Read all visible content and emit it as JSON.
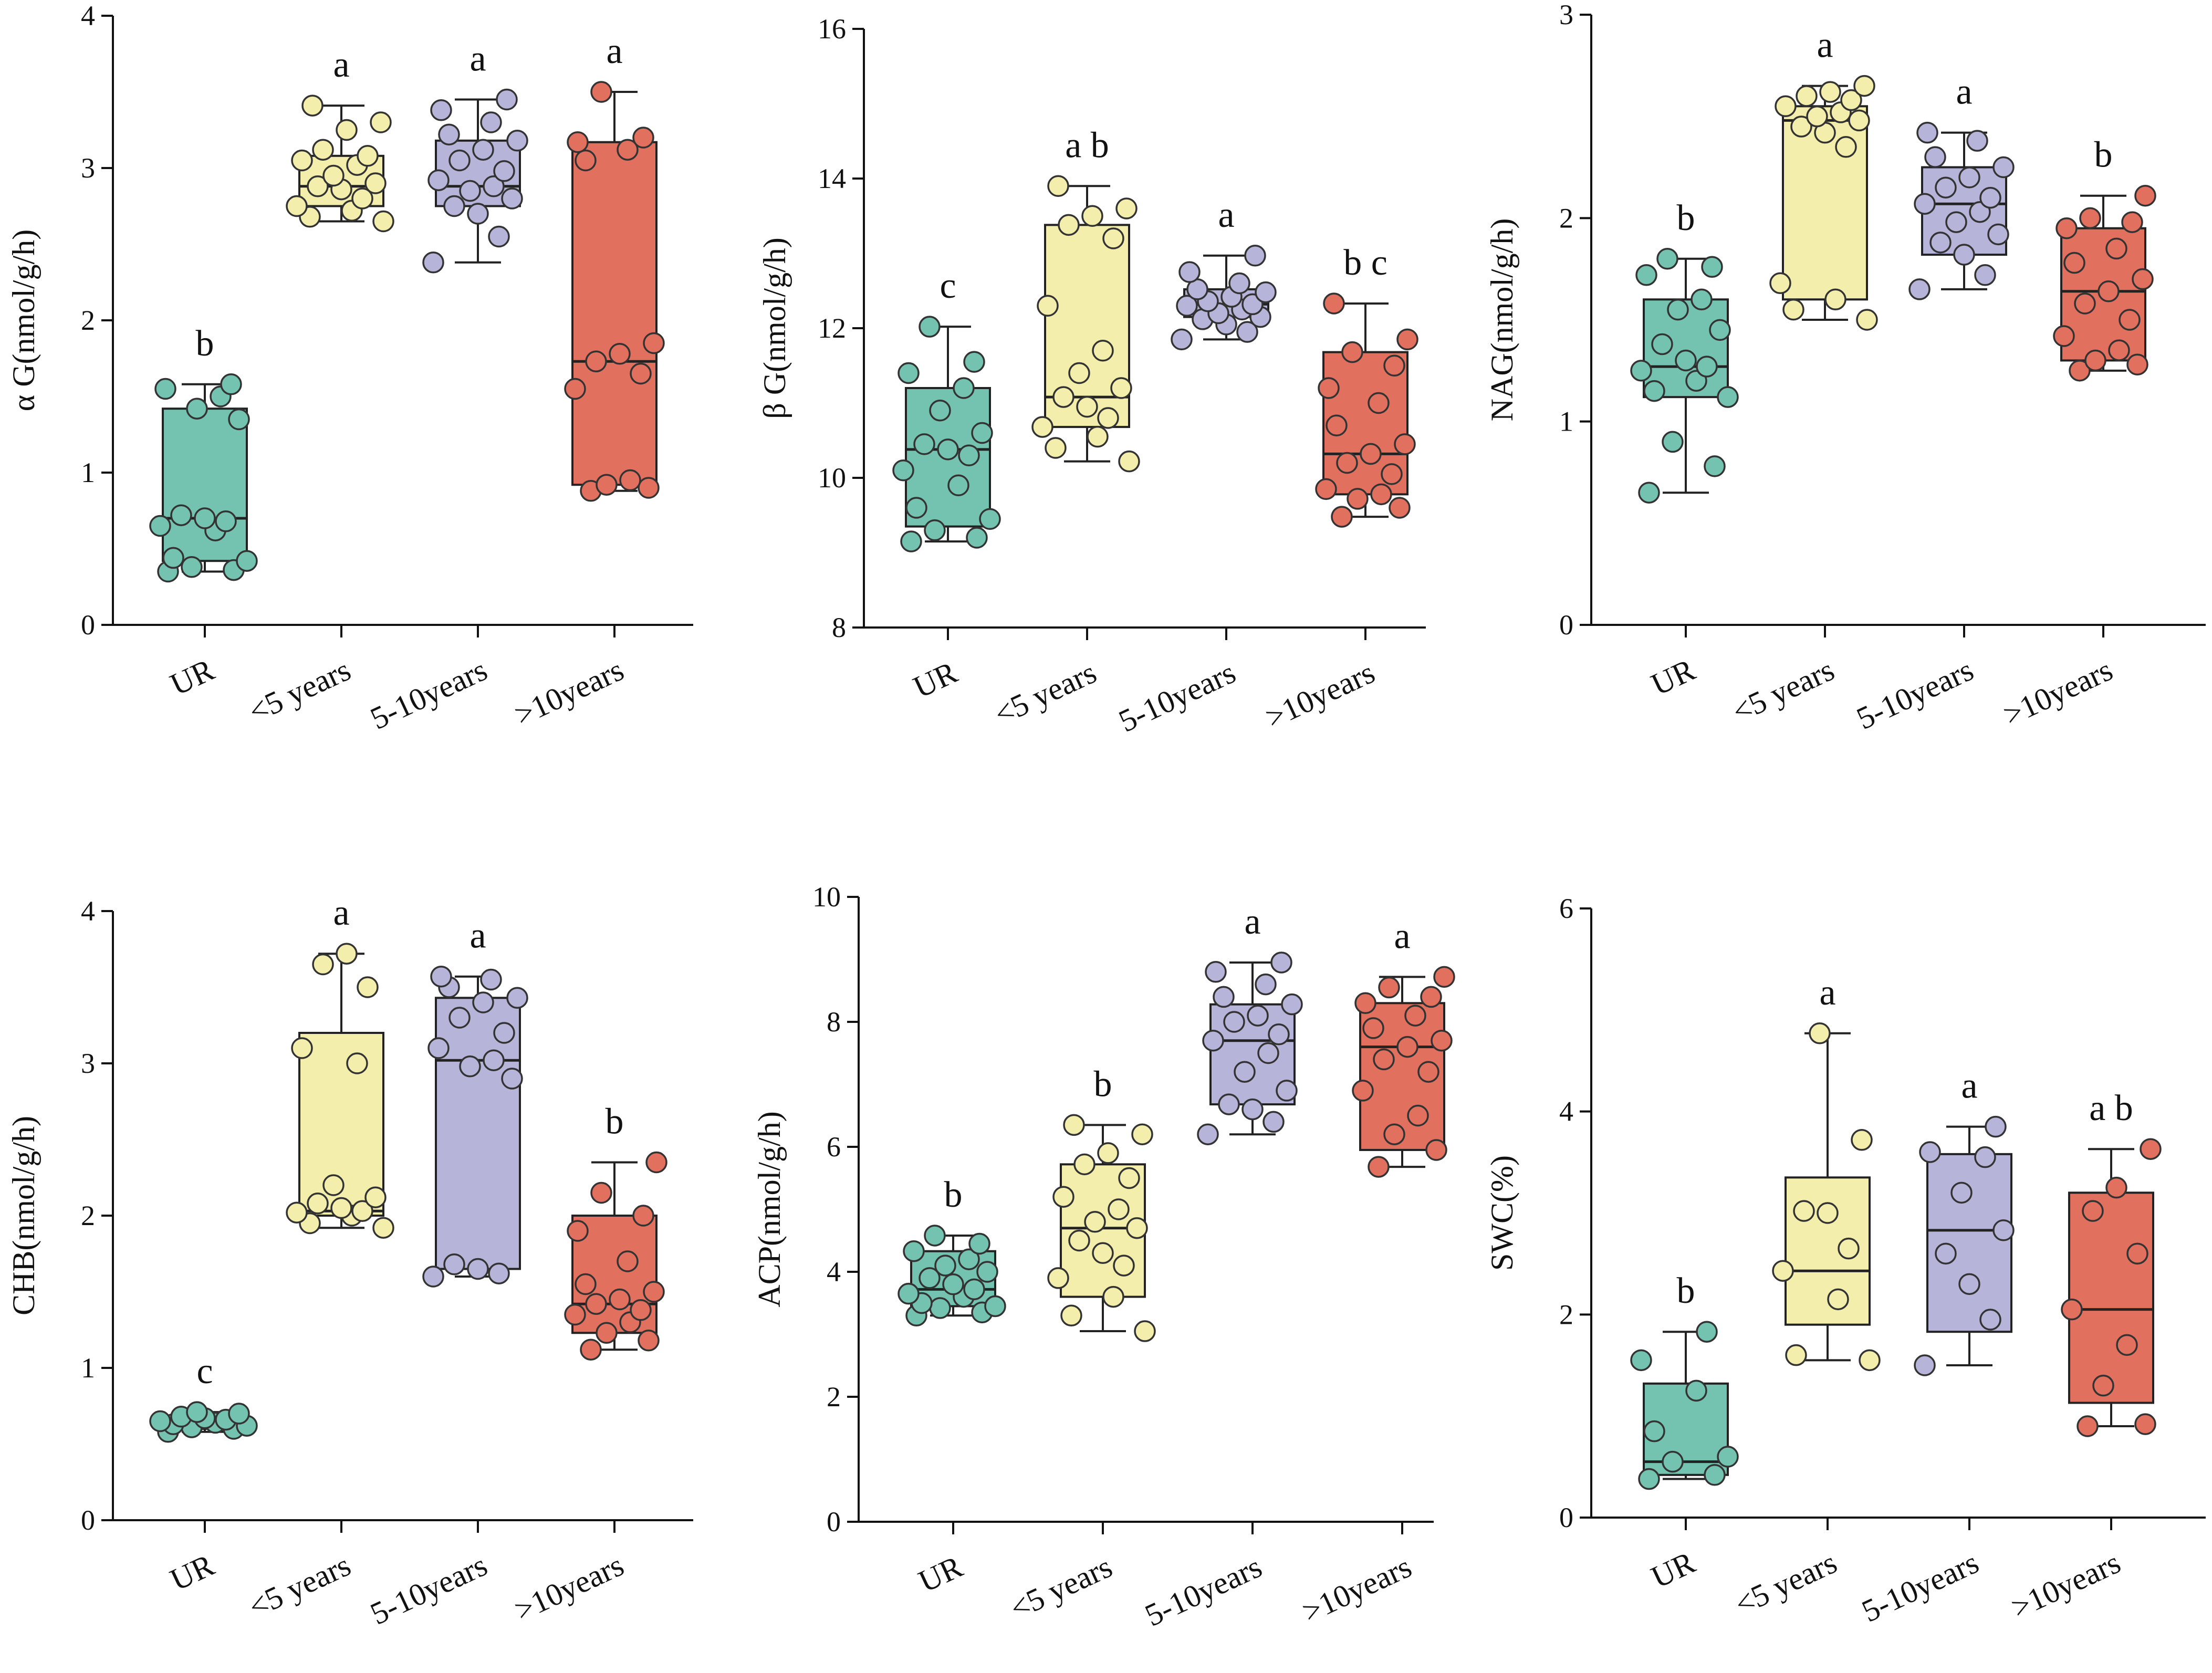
{
  "colors": {
    "UR": "#74c2b0",
    "<5 years": "#f3eeab",
    "5-10years": "#b7b4d9",
    ">10years": "#e2705f",
    "stroke": "#333333",
    "median": "#222222"
  },
  "chart_data": [
    {
      "type": "box",
      "panel": "a",
      "ylabel": "α G(nmol/g/h)",
      "ylim": [
        0,
        4
      ],
      "yticks": [
        0,
        1,
        2,
        3,
        4
      ],
      "categories": [
        "UR",
        "<5 years",
        "5-10years",
        ">10years"
      ],
      "series": [
        {
          "name": "UR",
          "min": 0.35,
          "q1": 0.42,
          "median": 0.7,
          "q3": 1.42,
          "max": 1.58,
          "letter": "b",
          "points": [
            0.35,
            0.36,
            0.38,
            0.42,
            0.44,
            0.62,
            0.65,
            0.68,
            0.7,
            0.72,
            1.35,
            1.42,
            1.5,
            1.55,
            1.58
          ]
        },
        {
          "name": "<5 years",
          "min": 2.65,
          "q1": 2.75,
          "median": 2.88,
          "q3": 3.08,
          "max": 3.41,
          "letter": "a",
          "points": [
            2.65,
            2.68,
            2.72,
            2.75,
            2.8,
            2.86,
            2.88,
            2.9,
            2.95,
            3.02,
            3.05,
            3.08,
            3.12,
            3.25,
            3.3,
            3.41
          ]
        },
        {
          "name": "5-10years",
          "min": 2.38,
          "q1": 2.75,
          "median": 2.88,
          "q3": 3.18,
          "max": 3.45,
          "letter": "a",
          "points": [
            2.38,
            2.55,
            2.7,
            2.75,
            2.8,
            2.85,
            2.88,
            2.92,
            2.98,
            3.05,
            3.12,
            3.18,
            3.22,
            3.3,
            3.38,
            3.45
          ]
        },
        {
          "name": ">10years",
          "min": 0.88,
          "q1": 0.92,
          "median": 1.73,
          "q3": 3.17,
          "max": 3.5,
          "letter": "a",
          "points": [
            0.88,
            0.9,
            0.92,
            0.95,
            1.55,
            1.65,
            1.73,
            1.78,
            1.85,
            3.05,
            3.12,
            3.17,
            3.2,
            3.5
          ]
        }
      ]
    },
    {
      "type": "box",
      "panel": "b",
      "ylabel": "β G(nmol/g/h)",
      "ylim": [
        8,
        16
      ],
      "yticks": [
        8,
        10,
        12,
        14,
        16
      ],
      "categories": [
        "UR",
        "<5 years",
        "5-10years",
        ">10years"
      ],
      "series": [
        {
          "name": "UR",
          "min": 9.15,
          "q1": 9.35,
          "median": 10.38,
          "q3": 11.2,
          "max": 12.02,
          "letter": "c",
          "points": [
            9.15,
            9.2,
            9.3,
            9.45,
            9.6,
            9.9,
            10.1,
            10.3,
            10.38,
            10.45,
            10.6,
            10.9,
            11.2,
            11.4,
            11.55,
            12.02
          ]
        },
        {
          "name": "<5 years",
          "min": 10.22,
          "q1": 10.68,
          "median": 11.08,
          "q3": 13.38,
          "max": 13.9,
          "letter": "a b",
          "points": [
            10.22,
            10.4,
            10.55,
            10.68,
            10.8,
            10.95,
            11.08,
            11.2,
            11.4,
            11.7,
            12.3,
            13.2,
            13.38,
            13.5,
            13.6,
            13.9
          ]
        },
        {
          "name": "5-10years",
          "min": 11.85,
          "q1": 12.15,
          "median": 12.32,
          "q3": 12.52,
          "max": 12.97,
          "letter": "a",
          "points": [
            11.85,
            11.95,
            12.05,
            12.12,
            12.15,
            12.2,
            12.25,
            12.3,
            12.32,
            12.36,
            12.42,
            12.48,
            12.52,
            12.6,
            12.75,
            12.97
          ]
        },
        {
          "name": ">10years",
          "min": 9.48,
          "q1": 9.78,
          "median": 10.32,
          "q3": 11.68,
          "max": 12.33,
          "letter": "b c",
          "points": [
            9.48,
            9.6,
            9.72,
            9.78,
            9.85,
            10.05,
            10.2,
            10.32,
            10.45,
            10.7,
            11.0,
            11.2,
            11.5,
            11.68,
            11.85,
            12.33
          ]
        }
      ]
    },
    {
      "type": "box",
      "panel": "c",
      "ylabel": "NAG(nmol/g/h)",
      "ylim": [
        0,
        3
      ],
      "yticks": [
        0,
        1,
        2,
        3
      ],
      "categories": [
        "UR",
        "<5 years",
        "5-10years",
        ">10years"
      ],
      "series": [
        {
          "name": "UR",
          "min": 0.65,
          "q1": 1.12,
          "median": 1.27,
          "q3": 1.6,
          "max": 1.8,
          "letter": "b",
          "points": [
            0.65,
            0.78,
            0.9,
            1.12,
            1.15,
            1.2,
            1.25,
            1.27,
            1.3,
            1.38,
            1.45,
            1.55,
            1.6,
            1.72,
            1.76,
            1.8
          ]
        },
        {
          "name": "<5 years",
          "min": 1.5,
          "q1": 1.6,
          "median": 2.48,
          "q3": 2.55,
          "max": 2.65,
          "letter": "a",
          "points": [
            1.5,
            1.55,
            1.6,
            1.68,
            2.35,
            2.42,
            2.45,
            2.48,
            2.5,
            2.52,
            2.55,
            2.58,
            2.6,
            2.62,
            2.65
          ]
        },
        {
          "name": "5-10years",
          "min": 1.65,
          "q1": 1.82,
          "median": 2.07,
          "q3": 2.25,
          "max": 2.42,
          "letter": "a",
          "points": [
            1.65,
            1.72,
            1.82,
            1.88,
            1.92,
            1.98,
            2.03,
            2.07,
            2.1,
            2.15,
            2.2,
            2.25,
            2.3,
            2.38,
            2.42
          ]
        },
        {
          "name": ">10years",
          "min": 1.25,
          "q1": 1.3,
          "median": 1.64,
          "q3": 1.95,
          "max": 2.11,
          "letter": "b",
          "points": [
            1.25,
            1.28,
            1.3,
            1.35,
            1.42,
            1.5,
            1.58,
            1.64,
            1.7,
            1.78,
            1.85,
            1.95,
            1.98,
            2.0,
            2.11
          ]
        }
      ]
    },
    {
      "type": "box",
      "panel": "d",
      "ylabel": "CHB(nmol/g/h)",
      "ylim": [
        0,
        4
      ],
      "yticks": [
        0,
        1,
        2,
        3,
        4
      ],
      "categories": [
        "UR",
        "<5 years",
        "5-10years",
        ">10years"
      ],
      "series": [
        {
          "name": "UR",
          "min": 0.58,
          "q1": 0.6,
          "median": 0.63,
          "q3": 0.68,
          "max": 0.71,
          "letter": "c",
          "points": [
            0.58,
            0.6,
            0.61,
            0.62,
            0.63,
            0.64,
            0.65,
            0.66,
            0.67,
            0.68,
            0.7,
            0.71
          ]
        },
        {
          "name": "<5 years",
          "min": 1.92,
          "q1": 2.0,
          "median": 2.03,
          "q3": 3.2,
          "max": 3.72,
          "letter": "a",
          "points": [
            1.92,
            1.95,
            2.0,
            2.02,
            2.03,
            2.05,
            2.08,
            2.12,
            2.2,
            3.0,
            3.1,
            3.5,
            3.65,
            3.72
          ]
        },
        {
          "name": "5-10years",
          "min": 1.6,
          "q1": 1.65,
          "median": 3.02,
          "q3": 3.43,
          "max": 3.57,
          "letter": "a",
          "points": [
            1.6,
            1.62,
            1.65,
            1.68,
            2.9,
            2.98,
            3.02,
            3.1,
            3.2,
            3.3,
            3.4,
            3.43,
            3.5,
            3.55,
            3.57
          ]
        },
        {
          "name": ">10years",
          "min": 1.12,
          "q1": 1.23,
          "median": 1.42,
          "q3": 2.0,
          "max": 2.35,
          "letter": "b",
          "points": [
            1.12,
            1.18,
            1.23,
            1.3,
            1.35,
            1.38,
            1.42,
            1.45,
            1.5,
            1.55,
            1.7,
            1.9,
            2.0,
            2.15,
            2.35
          ]
        }
      ]
    },
    {
      "type": "box",
      "panel": "e",
      "ylabel": "ACP(nmol/g/h)",
      "ylim": [
        0,
        10
      ],
      "yticks": [
        0,
        2,
        4,
        6,
        8,
        10
      ],
      "categories": [
        "UR",
        "<5 years",
        "5-10years",
        ">10years"
      ],
      "series": [
        {
          "name": "UR",
          "min": 3.3,
          "q1": 3.45,
          "median": 3.72,
          "q3": 4.33,
          "max": 4.58,
          "letter": "b",
          "points": [
            3.3,
            3.35,
            3.42,
            3.45,
            3.5,
            3.6,
            3.65,
            3.72,
            3.8,
            3.9,
            4.0,
            4.1,
            4.2,
            4.33,
            4.45,
            4.58
          ]
        },
        {
          "name": "<5 years",
          "min": 3.05,
          "q1": 3.6,
          "median": 4.7,
          "q3": 5.72,
          "max": 6.35,
          "letter": "b",
          "points": [
            3.05,
            3.3,
            3.6,
            3.9,
            4.1,
            4.3,
            4.5,
            4.7,
            4.8,
            5.0,
            5.2,
            5.5,
            5.72,
            5.9,
            6.2,
            6.35
          ]
        },
        {
          "name": "5-10years",
          "min": 6.2,
          "q1": 6.68,
          "median": 7.7,
          "q3": 8.28,
          "max": 8.95,
          "letter": "a",
          "points": [
            6.2,
            6.4,
            6.6,
            6.68,
            6.9,
            7.2,
            7.5,
            7.7,
            7.8,
            8.0,
            8.1,
            8.28,
            8.4,
            8.6,
            8.8,
            8.95
          ]
        },
        {
          "name": ">10years",
          "min": 5.68,
          "q1": 5.95,
          "median": 7.6,
          "q3": 8.3,
          "max": 8.72,
          "letter": "a",
          "points": [
            5.68,
            5.95,
            6.2,
            6.5,
            6.9,
            7.2,
            7.4,
            7.6,
            7.7,
            7.9,
            8.1,
            8.3,
            8.4,
            8.55,
            8.72
          ]
        }
      ]
    },
    {
      "type": "box",
      "panel": "f",
      "ylabel": "SWC(%)",
      "ylim": [
        0,
        6
      ],
      "yticks": [
        0,
        2,
        4,
        6
      ],
      "categories": [
        "UR",
        "<5 years",
        "5-10years",
        ">10years"
      ],
      "series": [
        {
          "name": "UR",
          "min": 0.38,
          "q1": 0.42,
          "median": 0.55,
          "q3": 1.32,
          "max": 1.83,
          "letter": "b",
          "points": [
            0.38,
            0.42,
            0.55,
            0.6,
            0.85,
            1.25,
            1.55,
            1.83
          ]
        },
        {
          "name": "<5 years",
          "min": 1.55,
          "q1": 1.9,
          "median": 2.43,
          "q3": 3.35,
          "max": 4.77,
          "letter": "a",
          "points": [
            1.55,
            1.6,
            2.15,
            2.43,
            2.65,
            3.0,
            3.02,
            3.72,
            4.77
          ]
        },
        {
          "name": "5-10years",
          "min": 1.5,
          "q1": 1.83,
          "median": 2.83,
          "q3": 3.58,
          "max": 3.85,
          "letter": "a",
          "points": [
            1.5,
            1.95,
            2.3,
            2.6,
            2.83,
            3.2,
            3.55,
            3.6,
            3.85
          ]
        },
        {
          "name": ">10years",
          "min": 0.9,
          "q1": 1.13,
          "median": 2.05,
          "q3": 3.2,
          "max": 3.63,
          "letter": "a b",
          "points": [
            0.9,
            0.92,
            1.3,
            1.7,
            2.05,
            2.6,
            3.02,
            3.25,
            3.63
          ]
        }
      ]
    }
  ]
}
